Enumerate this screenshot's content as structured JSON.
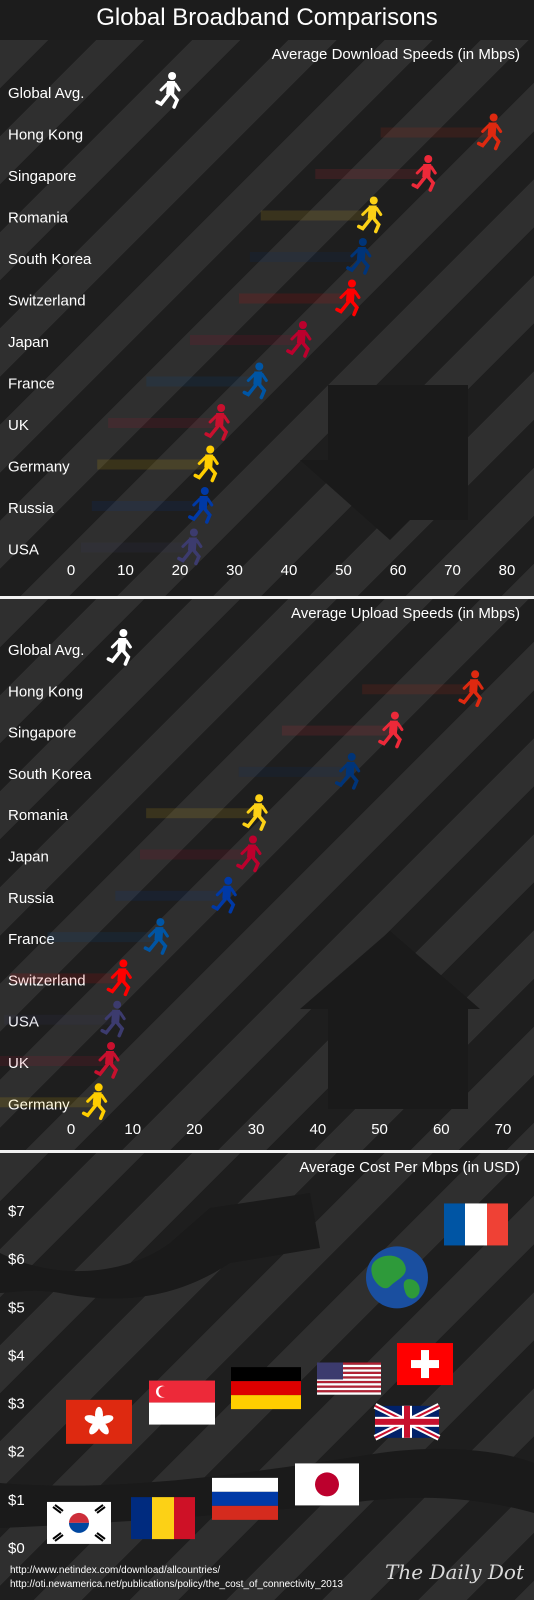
{
  "title": "Global Broadband Comparisons",
  "footer": {
    "line1": "http://www.netindex.com/download/allcountries/",
    "line2": "http://oti.newamerica.net/publications/policy/the_cost_of_connectivity_2013",
    "logo": "The Daily Dot"
  },
  "colors": {
    "background": "#262626",
    "stripe_dark": "#1e1e1e",
    "stripe_light": "#2f2f2f",
    "text": "#ffffff"
  },
  "chart_data": [
    {
      "type": "scatter",
      "title": "Average Download Speeds (in Mbps)",
      "categories": [
        "Global Avg.",
        "Hong Kong",
        "Singapore",
        "Romania",
        "South Korea",
        "Switzerland",
        "Japan",
        "France",
        "UK",
        "Germany",
        "Russia",
        "USA"
      ],
      "values": [
        18,
        77,
        65,
        55,
        53,
        51,
        42,
        34,
        27,
        25,
        24,
        22
      ],
      "xticks": [
        "0",
        "10",
        "20",
        "30",
        "40",
        "50",
        "60",
        "70",
        "80"
      ],
      "xlim": [
        0,
        80
      ],
      "marker": "running-figure-icon",
      "marker_colors": [
        "#ffffff",
        "#de2910",
        "#ed2939",
        "#fcd116",
        "#003478",
        "#ff0000",
        "#bc002d",
        "#0055a4",
        "#c8102e",
        "#ffce00",
        "#0039a6",
        "#3c3b6e"
      ]
    },
    {
      "type": "scatter",
      "title": "Average Upload Speeds (in Mbps)",
      "categories": [
        "Global Avg.",
        "Hong Kong",
        "Singapore",
        "South Korea",
        "Romania",
        "Japan",
        "Russia",
        "France",
        "Switzerland",
        "USA",
        "UK",
        "Germany"
      ],
      "values": [
        8,
        65,
        52,
        45,
        30,
        29,
        25,
        14,
        8,
        7,
        6,
        4
      ],
      "xticks": [
        "0",
        "10",
        "20",
        "30",
        "40",
        "50",
        "60",
        "70"
      ],
      "xlim": [
        0,
        70
      ],
      "marker": "running-figure-icon",
      "marker_colors": [
        "#ffffff",
        "#de2910",
        "#ed2939",
        "#003478",
        "#fcd116",
        "#bc002d",
        "#0039a6",
        "#0055a4",
        "#ff0000",
        "#3c3b6e",
        "#c8102e",
        "#ffce00"
      ]
    },
    {
      "type": "scatter",
      "title": "Average Cost Per Mbps (in USD)",
      "yticks": [
        "$7",
        "$6",
        "$5",
        "$4",
        "$3",
        "$2",
        "$1",
        "$0"
      ],
      "ylim": [
        0,
        7.5
      ],
      "points": [
        {
          "flag": "globe-icon",
          "value": 5.6
        },
        {
          "flag": "flag-france-icon",
          "value": 6.7
        },
        {
          "flag": "flag-switzerland-icon",
          "value": 3.8
        },
        {
          "flag": "flag-usa-icon",
          "value": 3.5
        },
        {
          "flag": "flag-germany-icon",
          "value": 3.3
        },
        {
          "flag": "flag-singapore-icon",
          "value": 3.0
        },
        {
          "flag": "flag-uk-icon",
          "value": 2.6
        },
        {
          "flag": "flag-hong-kong-icon",
          "value": 2.6
        },
        {
          "flag": "flag-japan-icon",
          "value": 1.3
        },
        {
          "flag": "flag-russia-icon",
          "value": 1.0
        },
        {
          "flag": "flag-romania-icon",
          "value": 0.6
        },
        {
          "flag": "flag-south-korea-icon",
          "value": 0.5
        }
      ]
    }
  ]
}
